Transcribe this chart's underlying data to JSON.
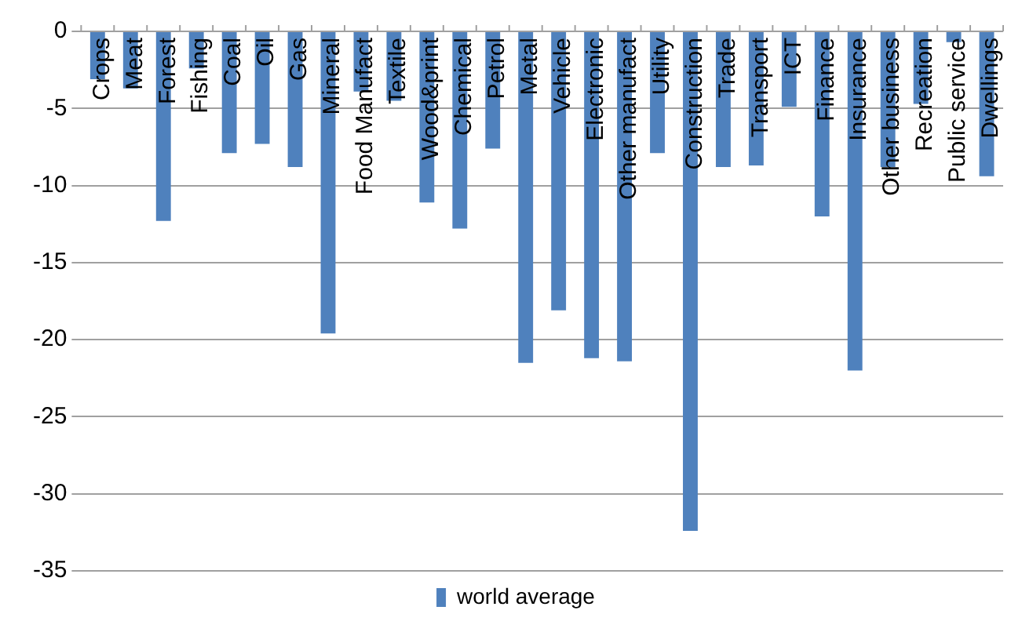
{
  "chart_data": {
    "type": "bar",
    "categories": [
      "Crops",
      "Meat",
      "Forest",
      "Fishing",
      "Coal",
      "Oil",
      "Gas",
      "Mineral",
      "Food Manufact",
      "Textile",
      "Wood&print",
      "Chemical",
      "Petrol",
      "Metal",
      "Vehicle",
      "Electronic",
      "Other manufact",
      "Utility",
      "Construction",
      "Trade",
      "Transport",
      "ICT",
      "Finance",
      "Insurance",
      "Other business",
      "Recreation",
      "Public service",
      "Dwellings"
    ],
    "series": [
      {
        "name": "world average",
        "color": "#4f81bd",
        "values": [
          -3.1,
          -3.7,
          -12.3,
          -2.4,
          -7.9,
          -7.3,
          -8.8,
          -19.6,
          -3.9,
          -4.5,
          -11.1,
          -12.8,
          -7.6,
          -21.5,
          -18.1,
          -21.2,
          -21.4,
          -7.9,
          -32.4,
          -8.8,
          -8.7,
          -4.9,
          -12.0,
          -22.0,
          -8.8,
          -4.7,
          -0.7,
          -9.4
        ]
      }
    ],
    "ylim": [
      -35,
      0
    ],
    "yticks": [
      -35,
      -30,
      -25,
      -20,
      -15,
      -10,
      -5,
      0
    ],
    "grid": "y",
    "legend": "bottom"
  }
}
